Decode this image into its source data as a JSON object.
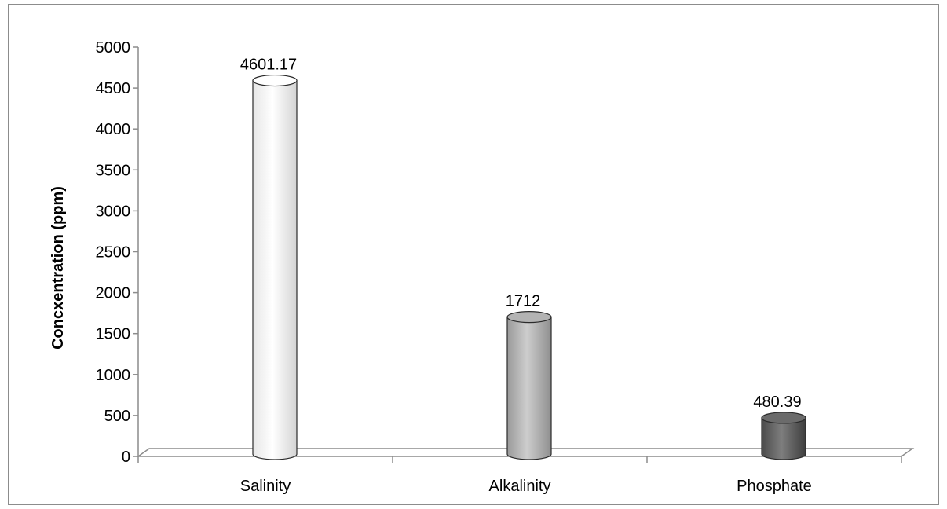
{
  "chart_data": {
    "type": "bar",
    "style": "3d-cylinder",
    "title": "",
    "xlabel": "",
    "ylabel": "Concxentration (ppm)",
    "categories": [
      "Salinity",
      "Alkalinity",
      "Phosphate"
    ],
    "values": [
      4601.17,
      1712,
      480.39
    ],
    "data_labels": [
      "4601.17",
      "1712",
      "480.39"
    ],
    "ylim": [
      0,
      5000
    ],
    "yticks": [
      0,
      500,
      1000,
      1500,
      2000,
      2500,
      3000,
      3500,
      4000,
      4500,
      5000
    ],
    "grid": false,
    "legend": "none",
    "bar_colors": [
      "#ffffff",
      "#b3b3b3",
      "#6b6b6b"
    ]
  }
}
